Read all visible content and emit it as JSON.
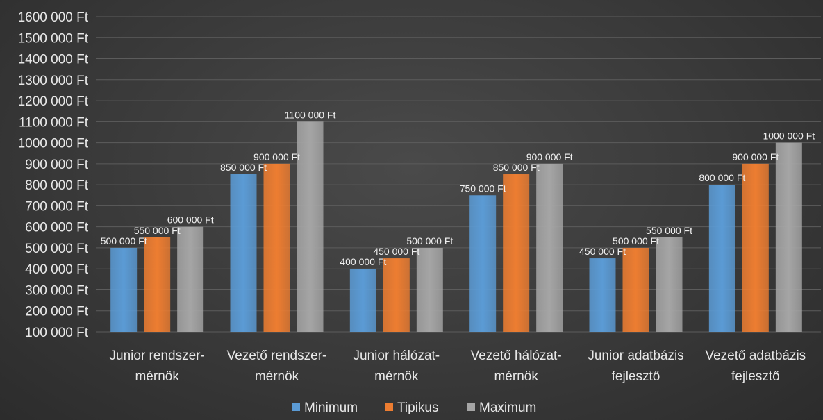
{
  "chart_data": {
    "type": "bar",
    "categories": [
      [
        "Junior rendszer-",
        "mérnök"
      ],
      [
        "Vezető rendszer-",
        "mérnök"
      ],
      [
        "Junior hálózat-",
        "mérnök"
      ],
      [
        "Vezető hálózat-",
        "mérnök"
      ],
      [
        "Junior adatbázis",
        "fejlesztő"
      ],
      [
        "Vezető adatbázis",
        "fejlesztő"
      ]
    ],
    "series": [
      {
        "name": "Minimum",
        "color": "#5b9bd5",
        "values": [
          500000,
          850000,
          400000,
          750000,
          450000,
          800000
        ],
        "labels": [
          "500 000 Ft",
          "850 000 Ft",
          "400 000 Ft",
          "750 000 Ft",
          "450 000 Ft",
          "800 000 Ft"
        ]
      },
      {
        "name": "Tipikus",
        "color": "#ed7d31",
        "values": [
          550000,
          900000,
          450000,
          850000,
          500000,
          900000
        ],
        "labels": [
          "550 000 Ft",
          "900 000 Ft",
          "450 000 Ft",
          "850 000 Ft",
          "500 000 Ft",
          "900 000 Ft"
        ]
      },
      {
        "name": "Maximum",
        "color": "#a5a5a5",
        "values": [
          600000,
          1100000,
          500000,
          900000,
          550000,
          1000000
        ],
        "labels": [
          "600 000 Ft",
          "1100 000 Ft",
          "500 000 Ft",
          "900 000 Ft",
          "550 000 Ft",
          "1000 000 Ft"
        ]
      }
    ],
    "ylim": [
      100000,
      1600000
    ],
    "yticks": [
      100000,
      200000,
      300000,
      400000,
      500000,
      600000,
      700000,
      800000,
      900000,
      1000000,
      1100000,
      1200000,
      1300000,
      1400000,
      1500000,
      1600000
    ],
    "ytick_labels": [
      "100 000 Ft",
      "200 000 Ft",
      "300 000 Ft",
      "400 000 Ft",
      "500 000 Ft",
      "600 000 Ft",
      "700 000 Ft",
      "800 000 Ft",
      "900 000 Ft",
      "1000 000 Ft",
      "1100 000 Ft",
      "1200 000 Ft",
      "1300 000 Ft",
      "1400 000 Ft",
      "1500 000 Ft",
      "1600 000 Ft"
    ],
    "grid": true,
    "legend_position": "bottom",
    "title": "",
    "xlabel": "",
    "ylabel": ""
  }
}
